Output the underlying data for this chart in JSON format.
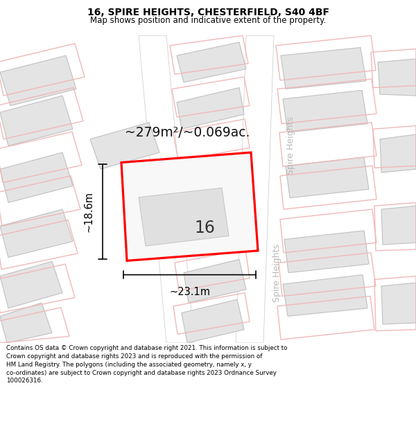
{
  "title": "16, SPIRE HEIGHTS, CHESTERFIELD, S40 4BF",
  "subtitle": "Map shows position and indicative extent of the property.",
  "footer": "Contains OS data © Crown copyright and database right 2021. This information is subject to Crown copyright and database rights 2023 and is reproduced with the permission of HM Land Registry. The polygons (including the associated geometry, namely x, y co-ordinates) are subject to Crown copyright and database rights 2023 Ordnance Survey 100026316.",
  "area_label": "~279m²/~0.069ac.",
  "dim_width": "~23.1m",
  "dim_height": "~18.6m",
  "road_label_upper": "Spire Heights",
  "road_label_lower": "Spire Heights",
  "label_16": "16",
  "map_bg": "#f2f0f0",
  "road_fill": "#ffffff",
  "road_edge": "#c8c8c8",
  "bldg_fill": "#e4e4e4",
  "bldg_edge": "#c0c0c0",
  "plot_fill": "#f8f8f8",
  "red_outline": "#f0b8b8",
  "highlight_edge": "#ff0000",
  "title_fontsize": 10,
  "subtitle_fontsize": 8.5
}
